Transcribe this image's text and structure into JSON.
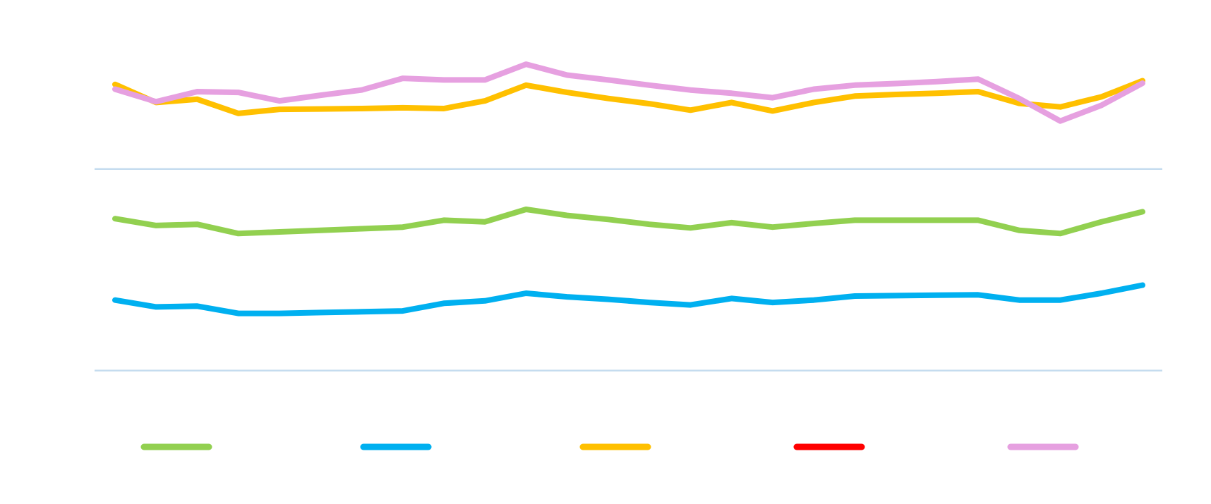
{
  "chart_data": {
    "type": "line",
    "categories": [
      null,
      null,
      null,
      null,
      null,
      null,
      null,
      null,
      null,
      null,
      null,
      null,
      null,
      null,
      null,
      null,
      null,
      null,
      null,
      null,
      null,
      null,
      null,
      null,
      null,
      null
    ],
    "ylim": [
      -10,
      90
    ],
    "gridlines": [
      0,
      50
    ],
    "grid_color": "#c5dcef",
    "legend": "bottom",
    "series": [
      {
        "color": "#92d050",
        "values": [
          37.7,
          36.0,
          36.3,
          34.0,
          34.4,
          34.8,
          35.2,
          35.6,
          37.3,
          36.9,
          40.0,
          38.5,
          37.5,
          36.3,
          35.4,
          36.7,
          35.6,
          36.5,
          37.3,
          37.3,
          37.3,
          37.3,
          34.8,
          34.0,
          36.9,
          39.4
        ]
      },
      {
        "color": "#00b0f0",
        "values": [
          17.5,
          15.8,
          16.0,
          14.2,
          14.2,
          14.4,
          14.6,
          14.8,
          16.7,
          17.3,
          19.2,
          18.3,
          17.7,
          16.9,
          16.3,
          17.9,
          16.9,
          17.5,
          18.5,
          18.6,
          18.7,
          18.8,
          17.5,
          17.5,
          19.2,
          21.2
        ]
      },
      {
        "color": "#ffc000",
        "values": [
          71.0,
          66.5,
          67.3,
          63.8,
          64.8,
          64.9,
          65.0,
          65.2,
          65.0,
          66.9,
          70.8,
          69.0,
          67.5,
          66.2,
          64.6,
          66.5,
          64.4,
          66.5,
          68.1,
          68.5,
          68.8,
          69.2,
          66.3,
          65.4,
          67.9,
          71.9
        ]
      },
      {
        "color": "#ff0000",
        "values": [
          null,
          null,
          null,
          null,
          null,
          null,
          null,
          null,
          null,
          null,
          null,
          null,
          null,
          null,
          null,
          null,
          null,
          null,
          null,
          null,
          null,
          null,
          null,
          null,
          null,
          null
        ]
      },
      {
        "color": "#e6a0e0",
        "values": [
          69.8,
          66.7,
          69.2,
          69.0,
          66.9,
          68.3,
          69.6,
          72.5,
          72.1,
          72.1,
          76.0,
          73.3,
          72.1,
          70.8,
          69.6,
          68.8,
          67.7,
          69.8,
          70.8,
          71.2,
          71.7,
          72.3,
          67.5,
          61.9,
          65.8,
          71.3
        ]
      }
    ]
  }
}
